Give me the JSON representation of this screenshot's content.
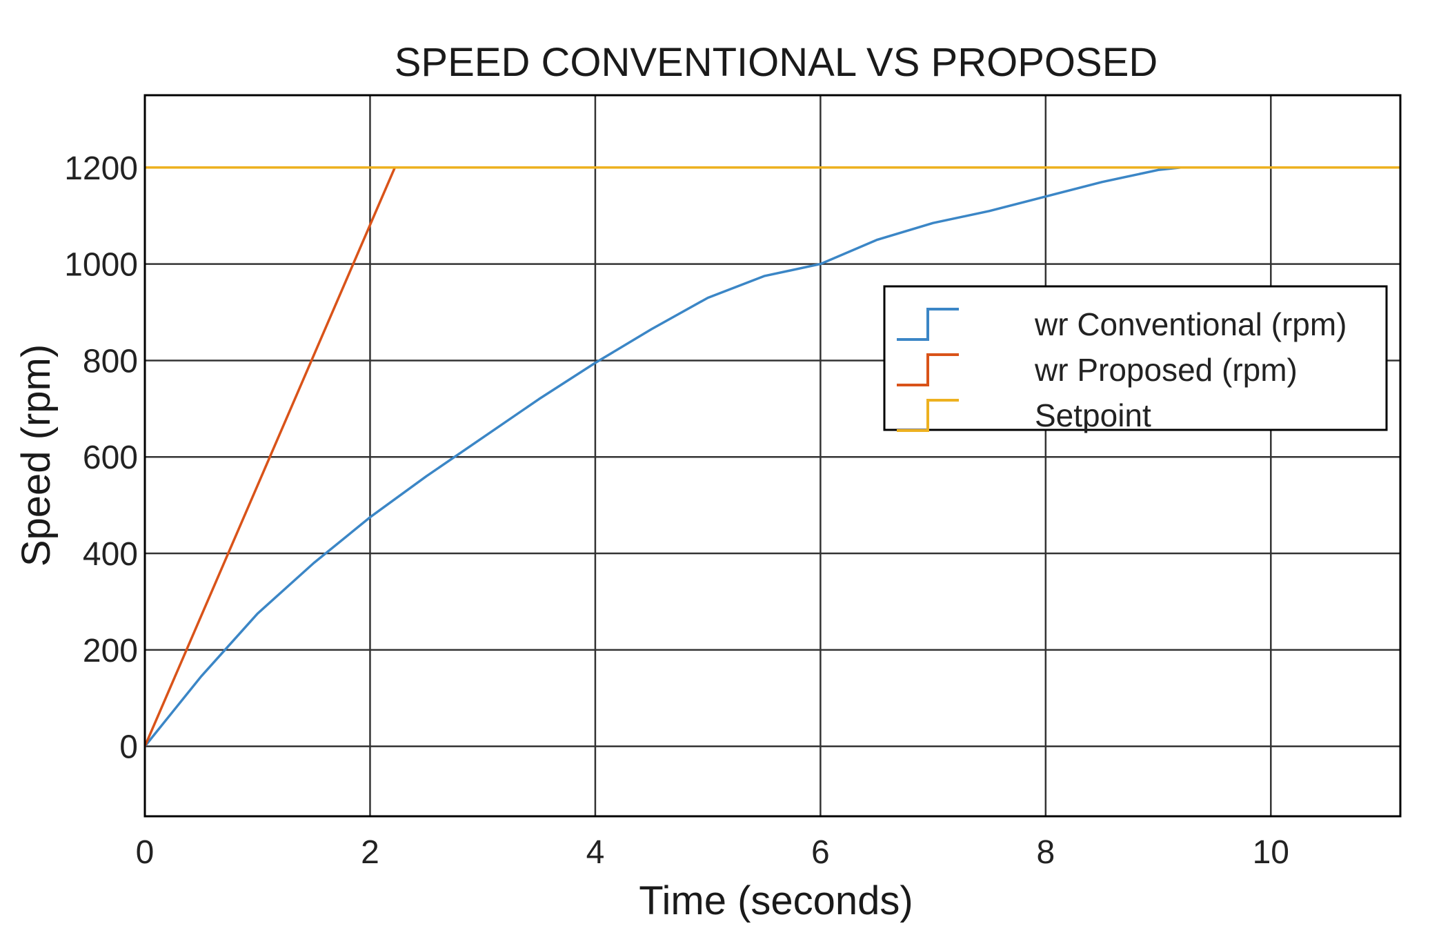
{
  "chart_data": {
    "type": "line",
    "title": "SPEED CONVENTIONAL VS PROPOSED",
    "xlabel": "Time (seconds)",
    "ylabel": "Speed (rpm)",
    "xlim": [
      0,
      11.15
    ],
    "ylim": [
      -145,
      1350
    ],
    "x_ticks": [
      0,
      2,
      4,
      6,
      8,
      10
    ],
    "y_ticks": [
      0,
      200,
      400,
      600,
      800,
      1000,
      1200
    ],
    "grid": true,
    "legend_position": "upper-right",
    "series": [
      {
        "name": "wr  Conventional (rpm)",
        "color": "#3b86c6",
        "step": false,
        "x": [
          0,
          0.5,
          1.0,
          1.5,
          2.0,
          2.5,
          3.0,
          3.5,
          4.0,
          4.5,
          5.0,
          5.5,
          6.0,
          6.5,
          7.0,
          7.5,
          8.0,
          8.5,
          9.0,
          9.2
        ],
        "y": [
          0,
          145,
          275,
          380,
          475,
          560,
          640,
          720,
          795,
          865,
          930,
          975,
          1000,
          1050,
          1085,
          1110,
          1140,
          1170,
          1195,
          1200
        ]
      },
      {
        "name": "wr  Proposed (rpm)",
        "color": "#d95319",
        "step": false,
        "x": [
          0,
          2.22
        ],
        "y": [
          0,
          1200
        ]
      },
      {
        "name": "Setpoint",
        "color": "#edb120",
        "step": false,
        "x": [
          0,
          11.15
        ],
        "y": [
          1200,
          1200
        ]
      }
    ]
  }
}
